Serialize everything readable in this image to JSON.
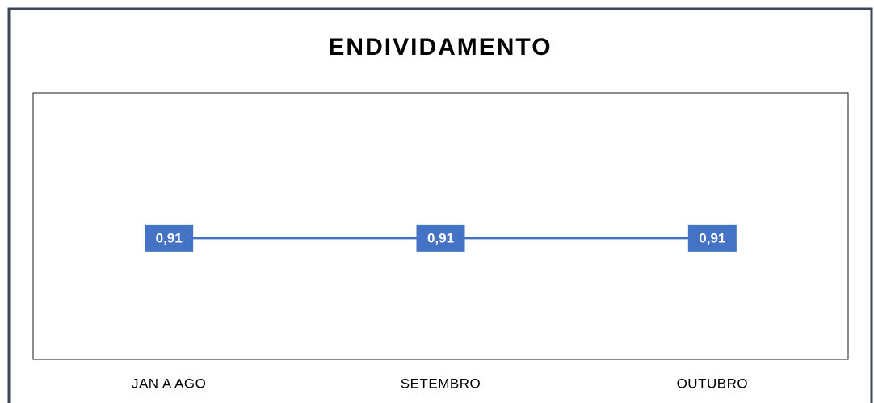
{
  "chart_data": {
    "type": "line",
    "title": "ENDIVIDAMENTO",
    "categories": [
      "JAN A AGO",
      "SETEMBRO",
      "OUTUBRO"
    ],
    "values": [
      0.91,
      0.91,
      0.91
    ],
    "value_labels": [
      "0,91",
      "0,91",
      "0,91"
    ],
    "color": "#4472c4",
    "ylim": [
      0,
      2
    ]
  }
}
